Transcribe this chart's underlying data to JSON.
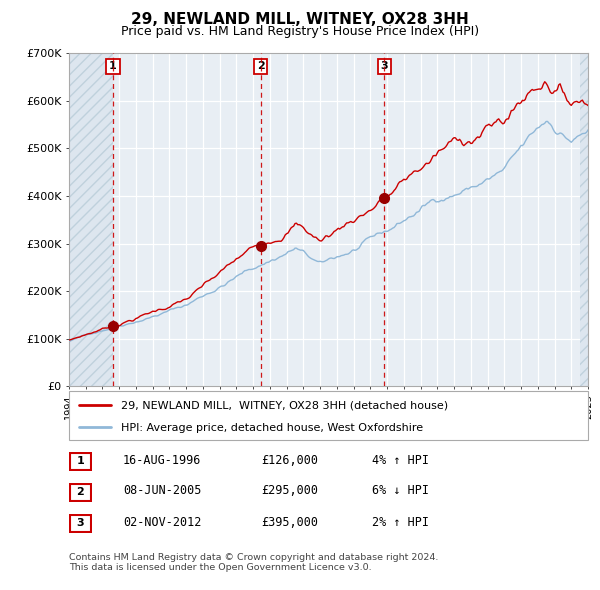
{
  "title": "29, NEWLAND MILL, WITNEY, OX28 3HH",
  "subtitle": "Price paid vs. HM Land Registry's House Price Index (HPI)",
  "title_fontsize": 11,
  "subtitle_fontsize": 9,
  "hpi_label": "HPI: Average price, detached house, West Oxfordshire",
  "price_label": "29, NEWLAND MILL,  WITNEY, OX28 3HH (detached house)",
  "sale_dates": [
    1996.622,
    2005.44,
    2012.838
  ],
  "sale_prices": [
    126000,
    295000,
    395000
  ],
  "sale_labels": [
    "1",
    "2",
    "3"
  ],
  "sale_date_strs": [
    "16-AUG-1996",
    "08-JUN-2005",
    "02-NOV-2012"
  ],
  "sale_price_strs": [
    "£126,000",
    "£295,000",
    "£395,000"
  ],
  "sale_hpi_strs": [
    "4% ↑ HPI",
    "6% ↓ HPI",
    "2% ↑ HPI"
  ],
  "xmin": 1994,
  "xmax": 2025,
  "ymin": 0,
  "ymax": 700000,
  "yticks": [
    0,
    100000,
    200000,
    300000,
    400000,
    500000,
    600000,
    700000
  ],
  "ytick_labels": [
    "£0",
    "£100K",
    "£200K",
    "£300K",
    "£400K",
    "£500K",
    "£600K",
    "£700K"
  ],
  "price_color": "#cc0000",
  "hpi_color": "#90b8d8",
  "sale_marker_color": "#990000",
  "dashed_line_color": "#cc0000",
  "bg_color": "#e8eef4",
  "grid_color": "#ffffff",
  "footnote1": "Contains HM Land Registry data © Crown copyright and database right 2024.",
  "footnote2": "This data is licensed under the Open Government Licence v3.0."
}
